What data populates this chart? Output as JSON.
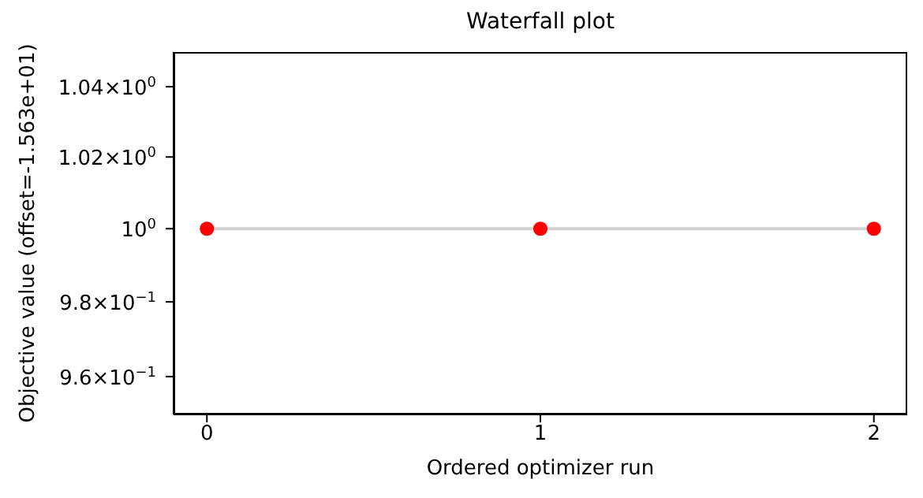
{
  "chart_data": {
    "type": "line",
    "title": "Waterfall plot",
    "xlabel": "Ordered optimizer run",
    "ylabel": "Objective value (offset=-1.563e+01)",
    "x": [
      0,
      1,
      2
    ],
    "series": [
      {
        "color": "#d3d3d3",
        "marker": "none",
        "values": [
          1,
          1,
          1
        ]
      },
      {
        "type": "scatter",
        "color": "#ff0000",
        "marker": "circle",
        "values": [
          1,
          1,
          1
        ]
      }
    ],
    "xlim": [
      -0.1,
      2.1
    ],
    "xticks": [
      0,
      1,
      2
    ],
    "ylim": [
      0.95,
      1.05
    ],
    "log": "y",
    "yticks": [
      {
        "value": 0.96,
        "label": "9.6×10$^{−1}$"
      },
      {
        "value": 0.98,
        "label": "9.8×10$^{−1}$"
      },
      {
        "value": 1,
        "label": "10$^{0}$"
      },
      {
        "value": 1.02,
        "label": "1.02×10$^{0}$"
      },
      {
        "value": 1.04,
        "label": "1.04×10$^{0}$"
      }
    ],
    "grid": false
  }
}
